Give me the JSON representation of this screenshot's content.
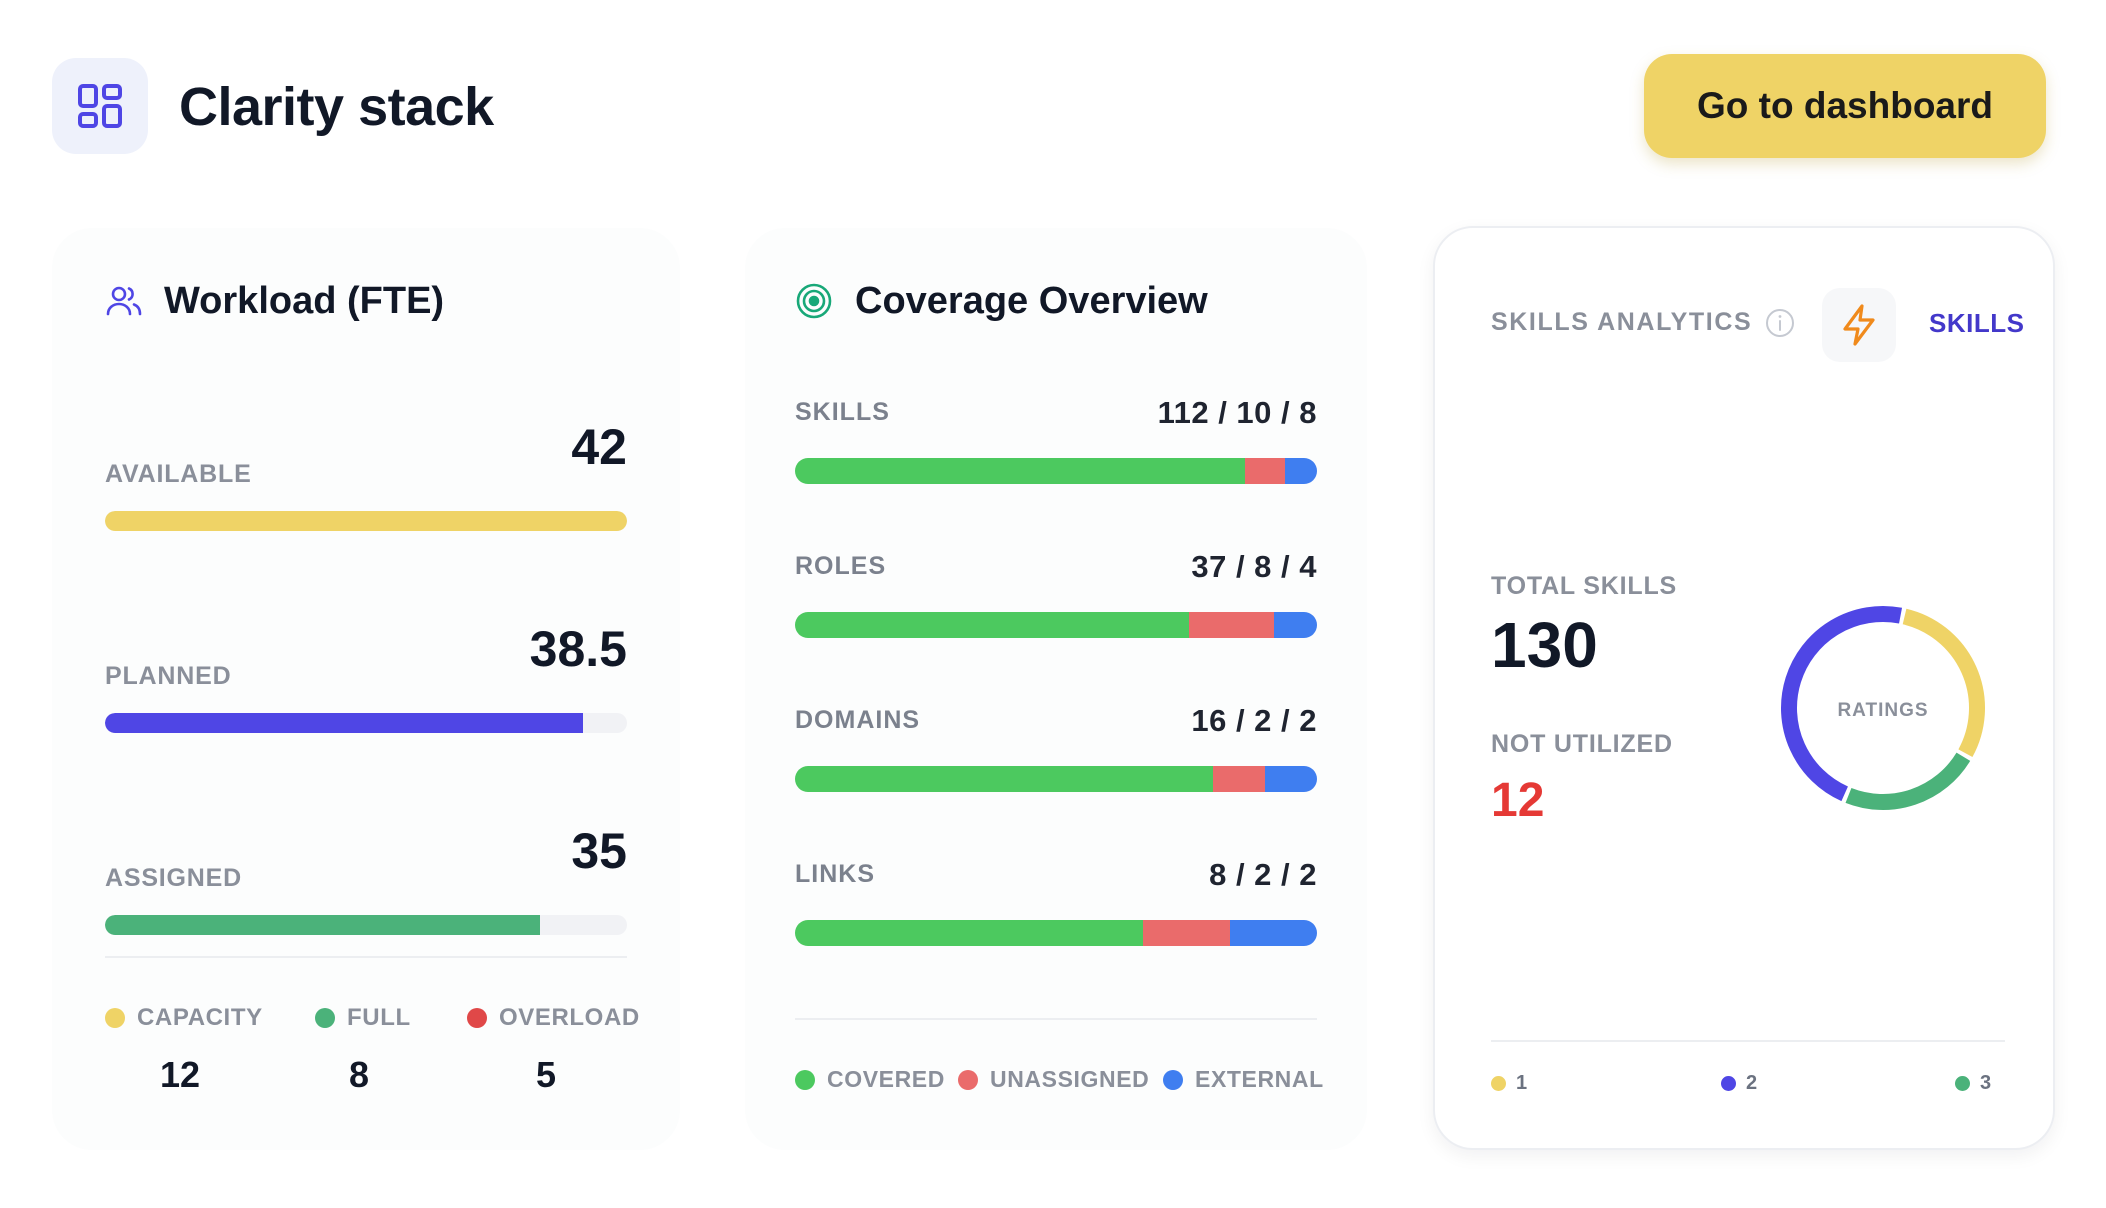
{
  "header": {
    "app_icon": "dashboard-grid-icon",
    "title": "Clarity stack",
    "dashboard_button": "Go to dashboard"
  },
  "colors": {
    "yellow": "#efd366",
    "indigo": "#4f46e5",
    "green": "#4bb27a",
    "coverage_green": "#4cc95f",
    "red": "#ea6b6b",
    "blue": "#3f7ef0",
    "legend_red": "#e04848"
  },
  "workload": {
    "title": "Workload (FTE)",
    "icon": "users-icon",
    "rows": [
      {
        "label": "AVAILABLE",
        "value": "42",
        "fill_fraction": 1.0
      },
      {
        "label": "PLANNED",
        "value": "38.5",
        "fill_fraction": 0.916
      },
      {
        "label": "ASSIGNED",
        "value": "35",
        "fill_fraction": 0.833
      }
    ],
    "legend": [
      {
        "label": "CAPACITY",
        "value": "12"
      },
      {
        "label": "FULL",
        "value": "8"
      },
      {
        "label": "OVERLOAD",
        "value": "5"
      }
    ]
  },
  "coverage": {
    "title": "Coverage Overview",
    "icon": "target-icon",
    "rows": [
      {
        "label": "SKILLS",
        "value": "112 / 10 / 8",
        "covered": 112,
        "unassigned": 10,
        "external": 8
      },
      {
        "label": "ROLES",
        "value": "37 / 8 / 4",
        "covered": 37,
        "unassigned": 8,
        "external": 4
      },
      {
        "label": "DOMAINS",
        "value": "16 / 2 / 2",
        "covered": 16,
        "unassigned": 2,
        "external": 2
      },
      {
        "label": "LINKS",
        "value": "8 / 2 / 2",
        "covered": 8,
        "unassigned": 2,
        "external": 2
      }
    ],
    "legend": [
      "COVERED",
      "UNASSIGNED",
      "EXTERNAL"
    ]
  },
  "skills": {
    "heading": "SKILLS ANALYTICS",
    "info_icon": "info-icon",
    "bolt_icon": "lightning-bolt-icon",
    "link": "SKILLS",
    "total_label": "TOTAL SKILLS",
    "total_value": "130",
    "not_utilized_label": "NOT UTILIZED",
    "not_utilized_value": "12",
    "donut_label": "RATINGS",
    "ratings": [
      {
        "label": "1",
        "share": 0.3
      },
      {
        "label": "2",
        "share": 0.47
      },
      {
        "label": "3",
        "share": 0.23
      }
    ]
  }
}
